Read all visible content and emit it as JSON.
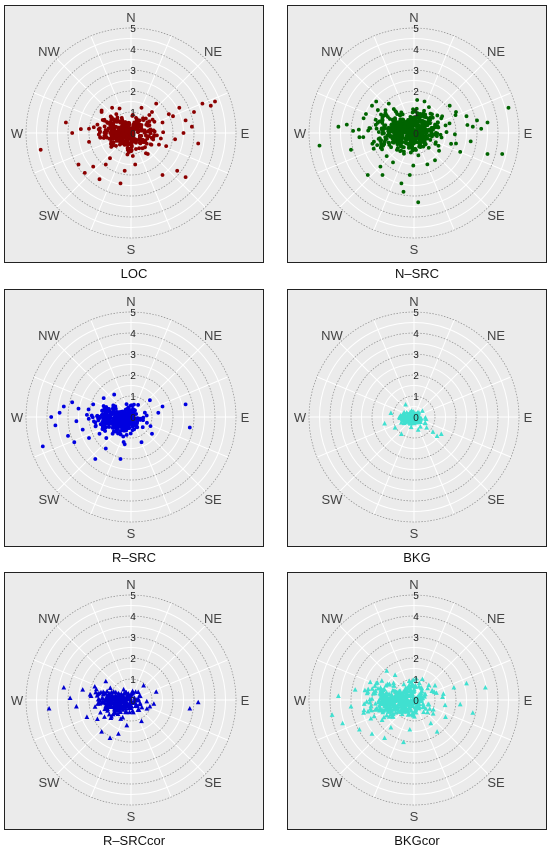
{
  "figure": {
    "direction_labels": [
      "N",
      "NE",
      "E",
      "SE",
      "S",
      "SW",
      "W",
      "NW"
    ],
    "radial_ticks": [
      "0",
      "1",
      "2",
      "3",
      "4",
      "5"
    ],
    "background_color": "#ebebeb",
    "grid_color": "#ffffff",
    "ring_color": "#8c8c8c"
  },
  "panels": [
    {
      "caption": "LOC",
      "color": "#8b0000",
      "marker": "circle"
    },
    {
      "caption": "N–SRC",
      "color": "#006400",
      "marker": "circle"
    },
    {
      "caption": "R–SRC",
      "color": "#0000e0",
      "marker": "circle"
    },
    {
      "caption": "BKG",
      "color": "#40e0d0",
      "marker": "triangle"
    },
    {
      "caption": "R–SRCcor",
      "color": "#0000d0",
      "marker": "triangle"
    },
    {
      "caption": "BKGcor",
      "color": "#40e0d0",
      "marker": "triangle"
    }
  ],
  "chart_data": [
    {
      "type": "scatter",
      "coord": "polar",
      "title": "LOC",
      "rlim": [
        0,
        5
      ],
      "r_ticks": [
        0,
        1,
        2,
        3,
        4,
        5
      ],
      "theta_labels": [
        "N",
        "NE",
        "E",
        "SE",
        "S",
        "SW",
        "W",
        "NW"
      ],
      "cluster": {
        "x": -0.2,
        "y": 0.05,
        "spread": 0.5,
        "n": 360
      },
      "points": [
        {
          "x": -4.3,
          "y": -0.8
        },
        {
          "x": -3.1,
          "y": 0.5
        },
        {
          "x": -2.8,
          "y": 0.0
        },
        {
          "x": -2.5,
          "y": -1.5
        },
        {
          "x": -2.2,
          "y": -1.9
        },
        {
          "x": -1.8,
          "y": -1.6
        },
        {
          "x": -1.5,
          "y": -2.2
        },
        {
          "x": -1.4,
          "y": 1.0
        },
        {
          "x": -1.2,
          "y": -1.5
        },
        {
          "x": -1.0,
          "y": -1.2
        },
        {
          "x": -0.5,
          "y": -2.4
        },
        {
          "x": -0.7,
          "y": 0.9
        },
        {
          "x": -2.0,
          "y": 0.2
        },
        {
          "x": 0.2,
          "y": -1.5
        },
        {
          "x": 0.5,
          "y": 1.2
        },
        {
          "x": 1.0,
          "y": 1.0
        },
        {
          "x": 1.5,
          "y": 0.5
        },
        {
          "x": 2.0,
          "y": 0.8
        },
        {
          "x": 2.3,
          "y": 1.2
        },
        {
          "x": 2.5,
          "y": 0.0
        },
        {
          "x": 2.6,
          "y": 0.6
        },
        {
          "x": 2.9,
          "y": 0.3
        },
        {
          "x": 3.0,
          "y": 1.0
        },
        {
          "x": 3.2,
          "y": -0.5
        },
        {
          "x": 3.4,
          "y": 1.4
        },
        {
          "x": 3.8,
          "y": 1.3
        },
        {
          "x": 4.0,
          "y": 1.5
        },
        {
          "x": 2.2,
          "y": -1.8
        },
        {
          "x": 2.6,
          "y": -2.1
        },
        {
          "x": 1.5,
          "y": -2.0
        },
        {
          "x": 0.8,
          "y": -1.0
        },
        {
          "x": -0.3,
          "y": -1.8
        },
        {
          "x": 1.8,
          "y": 0.9
        },
        {
          "x": 2.1,
          "y": -0.3
        },
        {
          "x": -1.6,
          "y": 0.4
        },
        {
          "x": 1.2,
          "y": 1.4
        },
        {
          "x": -0.9,
          "y": 1.2
        }
      ]
    },
    {
      "type": "scatter",
      "coord": "polar",
      "title": "N–SRC",
      "rlim": [
        0,
        5
      ],
      "r_ticks": [
        0,
        1,
        2,
        3,
        4,
        5
      ],
      "theta_labels": [
        "N",
        "NE",
        "E",
        "SE",
        "S",
        "SW",
        "W",
        "NW"
      ],
      "cluster": {
        "x": -0.3,
        "y": 0.1,
        "spread": 0.6,
        "n": 600
      },
      "points": [
        {
          "x": -4.5,
          "y": -0.6
        },
        {
          "x": -3.6,
          "y": 0.3
        },
        {
          "x": -3.2,
          "y": 0.4
        },
        {
          "x": -2.9,
          "y": 0.1
        },
        {
          "x": -2.6,
          "y": -0.2
        },
        {
          "x": -2.2,
          "y": -2.0
        },
        {
          "x": -2.0,
          "y": 1.3
        },
        {
          "x": -1.8,
          "y": 1.5
        },
        {
          "x": -1.6,
          "y": -1.6
        },
        {
          "x": -1.5,
          "y": -2.0
        },
        {
          "x": -1.2,
          "y": 1.4
        },
        {
          "x": -0.8,
          "y": 0.9
        },
        {
          "x": -1.3,
          "y": -1.1
        },
        {
          "x": 0.2,
          "y": -3.3
        },
        {
          "x": -0.6,
          "y": -2.4
        },
        {
          "x": -0.5,
          "y": -2.8
        },
        {
          "x": 0.5,
          "y": 1.5
        },
        {
          "x": 2.0,
          "y": 1.0
        },
        {
          "x": 2.5,
          "y": 0.8
        },
        {
          "x": 2.8,
          "y": 0.3
        },
        {
          "x": 3.0,
          "y": 0.6
        },
        {
          "x": 3.2,
          "y": 0.2
        },
        {
          "x": 3.5,
          "y": 0.5
        },
        {
          "x": 4.5,
          "y": 1.2
        },
        {
          "x": 4.2,
          "y": -1.0
        },
        {
          "x": 3.5,
          "y": -1.0
        },
        {
          "x": 2.2,
          "y": -0.9
        },
        {
          "x": 2.0,
          "y": -0.5
        },
        {
          "x": 1.3,
          "y": 0.7
        },
        {
          "x": -2.4,
          "y": 0.7
        },
        {
          "x": -1.0,
          "y": -1.4
        },
        {
          "x": 1.7,
          "y": 1.3
        },
        {
          "x": 2.7,
          "y": -0.4
        },
        {
          "x": -3.0,
          "y": -0.8
        },
        {
          "x": 1.0,
          "y": -1.3
        },
        {
          "x": -0.2,
          "y": -2.0
        }
      ]
    },
    {
      "type": "scatter",
      "coord": "polar",
      "title": "R–SRC",
      "rlim": [
        0,
        5
      ],
      "r_ticks": [
        0,
        1,
        2,
        3,
        4,
        5
      ],
      "theta_labels": [
        "N",
        "NE",
        "E",
        "SE",
        "S",
        "SW",
        "W",
        "NW"
      ],
      "cluster": {
        "x": -0.5,
        "y": -0.1,
        "spread": 0.45,
        "n": 330
      },
      "points": [
        {
          "x": -4.2,
          "y": -1.4
        },
        {
          "x": -3.6,
          "y": -0.4
        },
        {
          "x": -3.4,
          "y": 0.2
        },
        {
          "x": -3.2,
          "y": 0.5
        },
        {
          "x": -3.0,
          "y": -0.9
        },
        {
          "x": -2.8,
          "y": 0.7
        },
        {
          "x": -2.6,
          "y": -0.2
        },
        {
          "x": -2.5,
          "y": 0.4
        },
        {
          "x": -2.3,
          "y": -0.6
        },
        {
          "x": -2.1,
          "y": 0.1
        },
        {
          "x": -2.0,
          "y": -1.0
        },
        {
          "x": -1.8,
          "y": 0.6
        },
        {
          "x": -1.5,
          "y": -0.8
        },
        {
          "x": -1.7,
          "y": -2.0
        },
        {
          "x": -1.2,
          "y": -1.5
        },
        {
          "x": -0.5,
          "y": -2.0
        },
        {
          "x": -0.3,
          "y": -1.3
        },
        {
          "x": 0.5,
          "y": -1.2
        },
        {
          "x": 1.0,
          "y": -0.8
        },
        {
          "x": 1.3,
          "y": 0.2
        },
        {
          "x": 1.5,
          "y": 0.5
        },
        {
          "x": 2.6,
          "y": 0.6
        },
        {
          "x": 2.8,
          "y": -0.5
        },
        {
          "x": -3.8,
          "y": 0.0
        },
        {
          "x": -2.7,
          "y": -1.2
        },
        {
          "x": -1.3,
          "y": 0.9
        },
        {
          "x": 0.9,
          "y": 0.8
        }
      ]
    },
    {
      "type": "scatter",
      "coord": "polar",
      "title": "BKG",
      "rlim": [
        0,
        5
      ],
      "r_ticks": [
        0,
        1,
        2,
        3,
        4,
        5
      ],
      "theta_labels": [
        "N",
        "NE",
        "E",
        "SE",
        "S",
        "SW",
        "W",
        "NW"
      ],
      "cluster": {
        "x": -0.1,
        "y": -0.05,
        "spread": 0.22,
        "n": 130
      },
      "points": [
        {
          "x": -1.4,
          "y": -0.3
        },
        {
          "x": -1.1,
          "y": 0.2
        },
        {
          "x": -0.9,
          "y": -0.5
        },
        {
          "x": -0.6,
          "y": -0.8
        },
        {
          "x": 0.4,
          "y": 0.3
        },
        {
          "x": 0.6,
          "y": -0.5
        },
        {
          "x": 0.9,
          "y": -0.7
        },
        {
          "x": 1.1,
          "y": -0.9
        },
        {
          "x": 1.3,
          "y": -0.8
        },
        {
          "x": 0.2,
          "y": -0.6
        },
        {
          "x": -0.4,
          "y": 0.6
        }
      ]
    },
    {
      "type": "scatter",
      "coord": "polar",
      "title": "R–SRCcor",
      "rlim": [
        0,
        5
      ],
      "r_ticks": [
        0,
        1,
        2,
        3,
        4,
        5
      ],
      "theta_labels": [
        "N",
        "NE",
        "E",
        "SE",
        "S",
        "SW",
        "W",
        "NW"
      ],
      "cluster": {
        "x": -0.6,
        "y": -0.05,
        "spread": 0.4,
        "n": 260
      },
      "points": [
        {
          "x": -3.9,
          "y": -0.4
        },
        {
          "x": -3.2,
          "y": 0.6
        },
        {
          "x": -2.9,
          "y": 0.1
        },
        {
          "x": -2.6,
          "y": -0.3
        },
        {
          "x": -2.3,
          "y": 0.5
        },
        {
          "x": -2.1,
          "y": -0.8
        },
        {
          "x": -1.9,
          "y": 0.2
        },
        {
          "x": -1.6,
          "y": -0.9
        },
        {
          "x": -1.4,
          "y": -1.5
        },
        {
          "x": -1.0,
          "y": -1.8
        },
        {
          "x": -0.6,
          "y": -1.6
        },
        {
          "x": -0.2,
          "y": -1.2
        },
        {
          "x": 0.5,
          "y": -1.0
        },
        {
          "x": 0.9,
          "y": -0.3
        },
        {
          "x": 1.2,
          "y": 0.4
        },
        {
          "x": 3.2,
          "y": -0.1
        },
        {
          "x": 2.8,
          "y": -0.4
        },
        {
          "x": -1.2,
          "y": 0.9
        },
        {
          "x": 0.6,
          "y": 0.7
        }
      ]
    },
    {
      "type": "scatter",
      "coord": "polar",
      "title": "BKGcor",
      "rlim": [
        0,
        5
      ],
      "r_ticks": [
        0,
        1,
        2,
        3,
        4,
        5
      ],
      "theta_labels": [
        "N",
        "NE",
        "E",
        "SE",
        "S",
        "SW",
        "W",
        "NW"
      ],
      "cluster": {
        "x": -0.7,
        "y": 0.0,
        "spread": 0.55,
        "n": 420
      },
      "points": [
        {
          "x": -3.9,
          "y": -0.7
        },
        {
          "x": -3.4,
          "y": -1.1
        },
        {
          "x": -3.0,
          "y": -0.3
        },
        {
          "x": -2.8,
          "y": 0.5
        },
        {
          "x": -2.6,
          "y": -1.4
        },
        {
          "x": -2.4,
          "y": -0.6
        },
        {
          "x": -2.2,
          "y": 0.4
        },
        {
          "x": -2.0,
          "y": -1.6
        },
        {
          "x": -1.8,
          "y": 0.8
        },
        {
          "x": -1.6,
          "y": -0.4
        },
        {
          "x": -1.4,
          "y": -1.8
        },
        {
          "x": -1.1,
          "y": -1.3
        },
        {
          "x": -0.9,
          "y": 1.2
        },
        {
          "x": -0.5,
          "y": -2.0
        },
        {
          "x": 0.4,
          "y": 1.0
        },
        {
          "x": 1.0,
          "y": 0.7
        },
        {
          "x": 1.4,
          "y": 0.3
        },
        {
          "x": 1.9,
          "y": 0.6
        },
        {
          "x": 2.5,
          "y": 0.8
        },
        {
          "x": 3.4,
          "y": 0.6
        },
        {
          "x": 2.2,
          "y": -0.2
        },
        {
          "x": 1.5,
          "y": -0.8
        },
        {
          "x": 0.8,
          "y": -1.1
        },
        {
          "x": -0.2,
          "y": -1.4
        },
        {
          "x": -3.6,
          "y": 0.2
        },
        {
          "x": -1.3,
          "y": 1.4
        },
        {
          "x": 1.1,
          "y": -1.5
        },
        {
          "x": 2.8,
          "y": -0.6
        }
      ]
    }
  ]
}
